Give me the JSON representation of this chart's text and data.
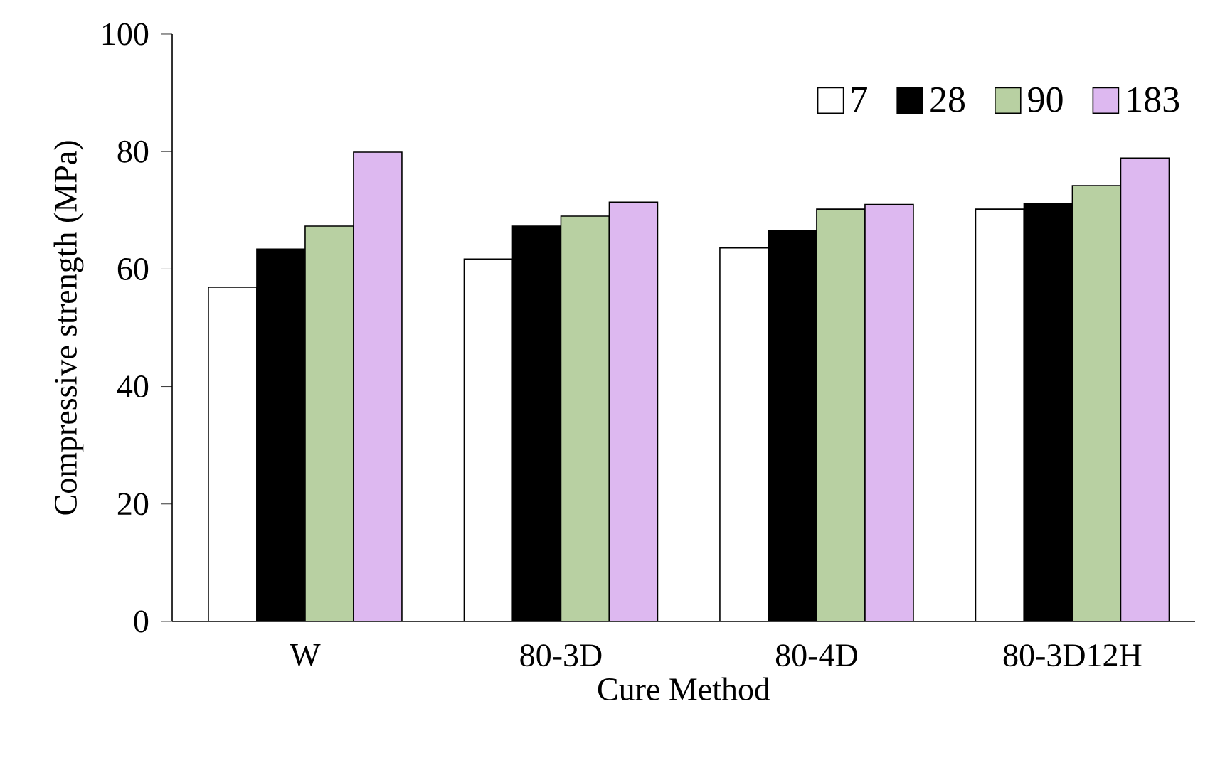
{
  "chart_data": {
    "type": "bar",
    "xlabel": "Cure  Method",
    "ylabel": "Compressive strength (MPa)",
    "categories": [
      "W",
      "80-3D",
      "80-4D",
      "80-3D12H"
    ],
    "series": [
      {
        "name": "7",
        "color": "#ffffff",
        "values": [
          56.9,
          61.7,
          63.6,
          70.2
        ]
      },
      {
        "name": "28",
        "color": "#000000",
        "values": [
          63.4,
          67.3,
          66.6,
          71.2
        ]
      },
      {
        "name": "90",
        "color": "#b8d0a2",
        "values": [
          67.3,
          69.0,
          70.2,
          74.2
        ]
      },
      {
        "name": "183",
        "color": "#ddb8f0",
        "values": [
          79.9,
          71.4,
          71.0,
          78.9
        ]
      }
    ],
    "ylim": [
      0,
      100
    ],
    "yticks": [
      0,
      20,
      40,
      60,
      80,
      100
    ],
    "grid": false,
    "legend": "top right"
  }
}
